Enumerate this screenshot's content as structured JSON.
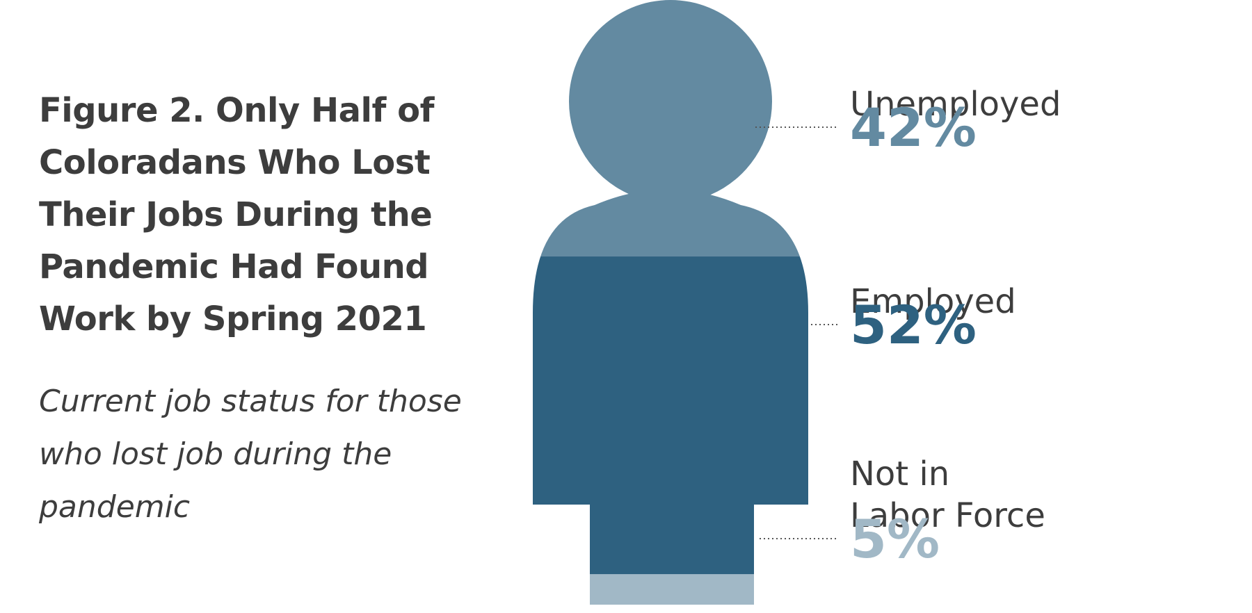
{
  "chart_data": {
    "type": "pie",
    "title": "Figure 2. Only Half of Coloradans Who Lost Their Jobs During the Pandemic Had Found Work by Spring 2021",
    "subtitle": "Current job status for those who lost job during the pandemic",
    "unit": "%",
    "slices": [
      {
        "label": "Unemployed",
        "value": 42,
        "display": "42%",
        "color": "#638aa1"
      },
      {
        "label": "Employed",
        "value": 52,
        "display": "52%",
        "color": "#2e6180"
      },
      {
        "label": "Not in Labor Force",
        "label_lines": [
          "Not in",
          "Labor Force"
        ],
        "value": 5,
        "display": "5%",
        "color": "#a1b8c6"
      }
    ],
    "leader_line_color": "#555555"
  }
}
